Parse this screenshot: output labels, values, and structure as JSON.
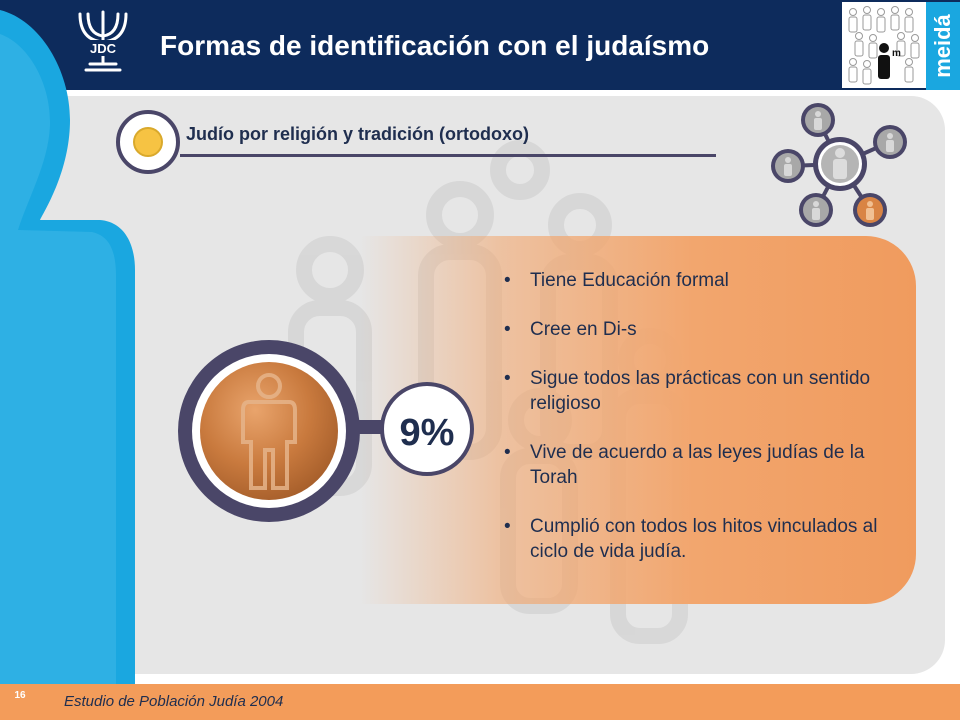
{
  "header": {
    "title": "Formas de identificación con el judaísmo",
    "logo_text": "JDC",
    "brand_word": "meidá"
  },
  "subtitle": "Judío por religión y tradición (ortodoxo)",
  "percentage": "9%",
  "bullet_symbol": "•",
  "bullets": [
    "Tiene Educación formal",
    "Cree en Di-s",
    "Sigue todos las prácticas con un sentido religioso",
    "Vive de acuerdo a las leyes judías de la Torah",
    "Cumplió con todos los hitos vinculados al ciclo de vida judía."
  ],
  "footer": {
    "text": "Estudio de Población Judía 2004",
    "page_number": "16"
  },
  "colors": {
    "header_bg": "#0d2b5c",
    "accent_blue": "#1aa7e0",
    "orange": "#f39c5a",
    "ring": "#4a4668",
    "yellow_dot": "#f6c343"
  },
  "icons": [
    "jdc-menorah-logo",
    "people-crowd-icon",
    "person-icon",
    "network-people-icon"
  ]
}
